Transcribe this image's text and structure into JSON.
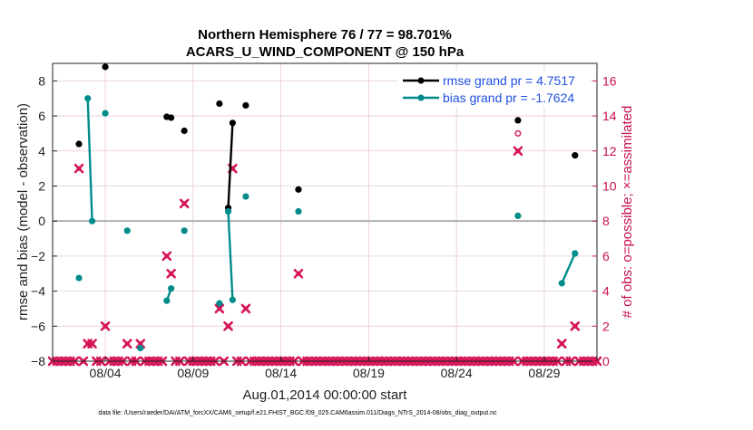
{
  "chart_data": {
    "type": "line",
    "title": "Northern Hemisphere 76 / 77 = 98.701%",
    "subtitle": "ACARS_U_WIND_COMPONENT @ 150 hPa",
    "xlabel": "Aug.01,2014 00:00:00 start",
    "ylabel": "rmse and bias (model - observation)",
    "y2label": "# of obs: o=possible; ×=assimilated",
    "footer": "data file: /Users/raeder/DAI/ATM_forcXX/CAM6_setup/f.e21.FHIST_BGC.f09_025.CAM6assim.011/Diags_NTrS_2014-08/obs_diag_output.nc",
    "x_unit": "days since 2014-08-01",
    "xlim": [
      0,
      31
    ],
    "ylim": [
      -8,
      9
    ],
    "y2lim": [
      0,
      17
    ],
    "x_ticks": [
      {
        "value": 3,
        "label": "08/04"
      },
      {
        "value": 8,
        "label": "08/09"
      },
      {
        "value": 13,
        "label": "08/14"
      },
      {
        "value": 18,
        "label": "08/19"
      },
      {
        "value": 23,
        "label": "08/24"
      },
      {
        "value": 28,
        "label": "08/29"
      }
    ],
    "y_ticks": [
      -8,
      -6,
      -4,
      -2,
      0,
      2,
      4,
      6,
      8
    ],
    "y2_ticks": [
      0,
      2,
      4,
      6,
      8,
      10,
      12,
      14,
      16
    ],
    "grid": true,
    "legend_position": "top-right",
    "series": [
      {
        "name": "rmse grand pr = 4.7517",
        "color": "#000000",
        "axis": "left",
        "points": [
          [
            1.5,
            4.4
          ],
          [
            3.0,
            8.8
          ],
          [
            6.5,
            5.95
          ],
          [
            6.75,
            5.9
          ],
          [
            7.5,
            5.15
          ],
          [
            9.5,
            6.7
          ],
          [
            10.0,
            0.75
          ],
          [
            10.25,
            5.6
          ],
          [
            11.0,
            6.6
          ],
          [
            14.0,
            1.8
          ],
          [
            26.5,
            5.75
          ],
          [
            29.75,
            3.75
          ]
        ],
        "segments": [
          [
            [
              10.0,
              0.75
            ],
            [
              10.25,
              5.6
            ]
          ]
        ]
      },
      {
        "name": "bias grand pr = -1.7624",
        "color": "#008b8b",
        "axis": "left",
        "points": [
          [
            1.5,
            -3.25
          ],
          [
            2.0,
            7.0
          ],
          [
            2.25,
            0.0
          ],
          [
            3.0,
            6.15
          ],
          [
            4.25,
            -0.55
          ],
          [
            5.0,
            -7.25
          ],
          [
            6.5,
            -4.55
          ],
          [
            6.75,
            -3.85
          ],
          [
            7.5,
            -0.55
          ],
          [
            9.5,
            -4.7
          ],
          [
            10.0,
            0.55
          ],
          [
            10.25,
            -4.5
          ],
          [
            11.0,
            1.4
          ],
          [
            14.0,
            0.55
          ],
          [
            26.5,
            0.3
          ],
          [
            29.0,
            -3.55
          ],
          [
            29.75,
            -1.85
          ]
        ],
        "segments": [
          [
            [
              2.0,
              7.0
            ],
            [
              2.25,
              0.0
            ]
          ],
          [
            [
              6.5,
              -4.55
            ],
            [
              6.75,
              -3.85
            ]
          ],
          [
            [
              10.0,
              0.55
            ],
            [
              10.25,
              -4.5
            ]
          ],
          [
            [
              29.0,
              -3.55
            ],
            [
              29.75,
              -1.85
            ]
          ]
        ]
      }
    ],
    "obs_assimilated": {
      "color": "#d6155a",
      "axis": "right",
      "points": [
        [
          0,
          0
        ],
        [
          0.25,
          0
        ],
        [
          0.5,
          0
        ],
        [
          0.75,
          0
        ],
        [
          1.0,
          0
        ],
        [
          1.25,
          0
        ],
        [
          1.5,
          11
        ],
        [
          1.75,
          0
        ],
        [
          2.0,
          1
        ],
        [
          2.25,
          1
        ],
        [
          2.5,
          0
        ],
        [
          2.75,
          0
        ],
        [
          3.0,
          2
        ],
        [
          3.25,
          0
        ],
        [
          3.5,
          0
        ],
        [
          3.75,
          0
        ],
        [
          4.0,
          0
        ],
        [
          4.25,
          1
        ],
        [
          4.5,
          0
        ],
        [
          4.75,
          0
        ],
        [
          5.0,
          1
        ],
        [
          5.25,
          0
        ],
        [
          5.5,
          0
        ],
        [
          5.75,
          0
        ],
        [
          6.0,
          0
        ],
        [
          6.25,
          0
        ],
        [
          6.5,
          6
        ],
        [
          6.75,
          5
        ],
        [
          7.0,
          0
        ],
        [
          7.25,
          0
        ],
        [
          7.5,
          9
        ],
        [
          7.75,
          0
        ],
        [
          8.0,
          0
        ],
        [
          8.25,
          0
        ],
        [
          8.5,
          0
        ],
        [
          8.75,
          0
        ],
        [
          9.0,
          0
        ],
        [
          9.25,
          0
        ],
        [
          9.5,
          3
        ],
        [
          9.75,
          0
        ],
        [
          10.0,
          2
        ],
        [
          10.25,
          11
        ],
        [
          10.5,
          0
        ],
        [
          10.75,
          0
        ],
        [
          11.0,
          3
        ],
        [
          11.25,
          0
        ],
        [
          11.5,
          0
        ],
        [
          11.75,
          0
        ],
        [
          12.0,
          0
        ],
        [
          12.25,
          0
        ],
        [
          12.5,
          0
        ],
        [
          12.75,
          0
        ],
        [
          13.0,
          0
        ],
        [
          13.25,
          0
        ],
        [
          13.5,
          0
        ],
        [
          13.75,
          0
        ],
        [
          14.0,
          5
        ],
        [
          14.25,
          0
        ],
        [
          14.5,
          0
        ],
        [
          14.75,
          0
        ],
        [
          15.0,
          0
        ],
        [
          15.25,
          0
        ],
        [
          15.5,
          0
        ],
        [
          15.75,
          0
        ],
        [
          16.0,
          0
        ],
        [
          16.25,
          0
        ],
        [
          16.5,
          0
        ],
        [
          16.75,
          0
        ],
        [
          17.0,
          0
        ],
        [
          17.25,
          0
        ],
        [
          17.5,
          0
        ],
        [
          17.75,
          0
        ],
        [
          18.0,
          0
        ],
        [
          18.25,
          0
        ],
        [
          18.5,
          0
        ],
        [
          18.75,
          0
        ],
        [
          19.0,
          0
        ],
        [
          19.25,
          0
        ],
        [
          19.5,
          0
        ],
        [
          19.75,
          0
        ],
        [
          20.0,
          0
        ],
        [
          20.25,
          0
        ],
        [
          20.5,
          0
        ],
        [
          20.75,
          0
        ],
        [
          21.0,
          0
        ],
        [
          21.25,
          0
        ],
        [
          21.5,
          0
        ],
        [
          21.75,
          0
        ],
        [
          22.0,
          0
        ],
        [
          22.25,
          0
        ],
        [
          22.5,
          0
        ],
        [
          22.75,
          0
        ],
        [
          23.0,
          0
        ],
        [
          23.25,
          0
        ],
        [
          23.5,
          0
        ],
        [
          23.75,
          0
        ],
        [
          24.0,
          0
        ],
        [
          24.25,
          0
        ],
        [
          24.5,
          0
        ],
        [
          24.75,
          0
        ],
        [
          25.0,
          0
        ],
        [
          25.25,
          0
        ],
        [
          25.5,
          0
        ],
        [
          25.75,
          0
        ],
        [
          26.0,
          0
        ],
        [
          26.25,
          0
        ],
        [
          26.5,
          12
        ],
        [
          26.75,
          0
        ],
        [
          27.0,
          0
        ],
        [
          27.25,
          0
        ],
        [
          27.5,
          0
        ],
        [
          27.75,
          0
        ],
        [
          28.0,
          0
        ],
        [
          28.25,
          0
        ],
        [
          28.5,
          0
        ],
        [
          28.75,
          0
        ],
        [
          29.0,
          1
        ],
        [
          29.25,
          0
        ],
        [
          29.5,
          0
        ],
        [
          29.75,
          2
        ],
        [
          30.0,
          0
        ],
        [
          30.25,
          0
        ],
        [
          30.5,
          0
        ],
        [
          30.75,
          0
        ],
        [
          31.0,
          0
        ]
      ]
    },
    "obs_possible": {
      "color": "#d6155a",
      "axis": "right",
      "points": [
        [
          26.5,
          13
        ]
      ]
    }
  }
}
